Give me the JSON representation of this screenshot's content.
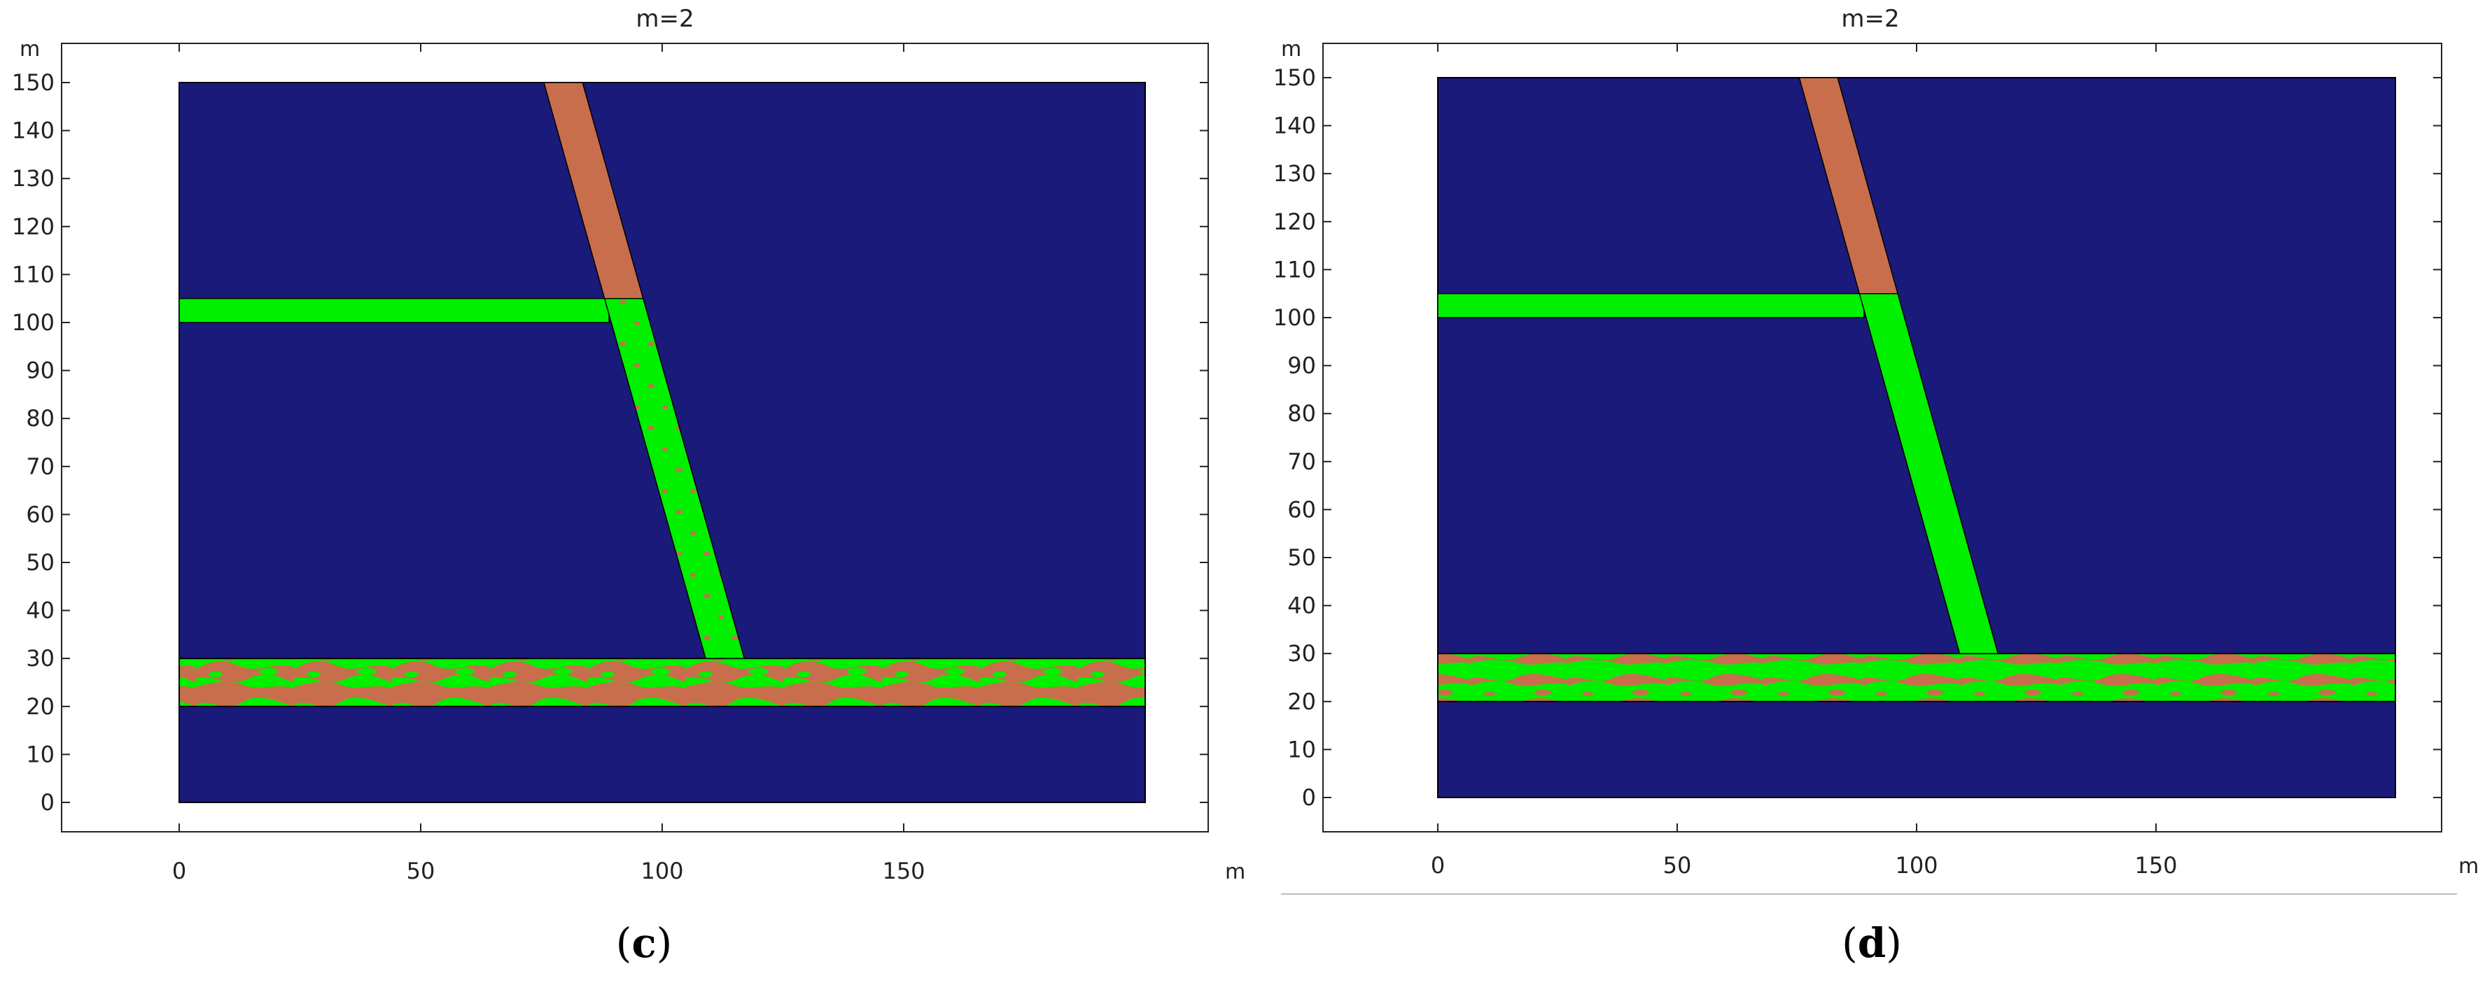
{
  "colors": {
    "background": "#1a1a7a",
    "fluid": "#00f000",
    "rock": "#c96e4c",
    "frame": "#000000",
    "separator": "#bfbfbf"
  },
  "panels": [
    {
      "title": "m=2",
      "y_unit": "m",
      "x_unit": "m",
      "caption_open": "(",
      "caption_letter": "c",
      "caption_close": ")",
      "x_ticks": [
        "0",
        "50",
        "100",
        "150"
      ],
      "y_ticks": [
        "150",
        "140",
        "130",
        "120",
        "110",
        "100",
        "90",
        "80",
        "70",
        "60",
        "50",
        "40",
        "30",
        "20",
        "10",
        "0"
      ]
    },
    {
      "title": "m=2",
      "y_unit": "m",
      "x_unit": "m",
      "caption_open": "(",
      "caption_letter": "d",
      "caption_close": ")",
      "x_ticks": [
        "0",
        "50",
        "100",
        "150"
      ],
      "y_ticks": [
        "150",
        "140",
        "130",
        "120",
        "110",
        "100",
        "90",
        "80",
        "70",
        "60",
        "50",
        "40",
        "30",
        "20",
        "10",
        "0"
      ]
    }
  ]
}
